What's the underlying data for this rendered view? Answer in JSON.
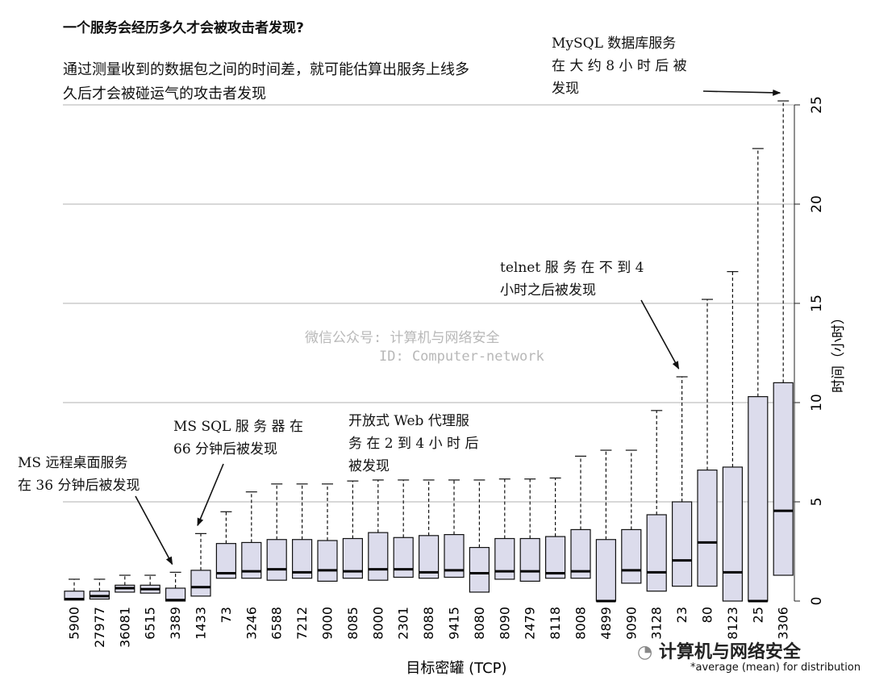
{
  "chart_data": {
    "type": "box",
    "title": "一个服务会经历多久才会被攻击者发现?",
    "subtitle": "通过测量收到的数据包之间的时间差，就可能估算出服务上线多久后才会被碰运气的攻击者发现",
    "xlabel": "目标密罐 (TCP)",
    "ylabel": "时间（小时）",
    "ylim": [
      0,
      25
    ],
    "yticks": [
      0,
      5,
      10,
      15,
      20,
      25
    ],
    "y_axis_side": "right",
    "grid": "horizontal",
    "box_fill": "#dcdcec",
    "categories": [
      "5900",
      "27977",
      "36081",
      "6515",
      "3389",
      "1433",
      "73",
      "3246",
      "6588",
      "7212",
      "9000",
      "8085",
      "8000",
      "2301",
      "8088",
      "9415",
      "8080",
      "8090",
      "2479",
      "8118",
      "8008",
      "4899",
      "9090",
      "3128",
      "23",
      "80",
      "8123",
      "25",
      "3306"
    ],
    "boxes": [
      {
        "q1": 0.05,
        "median": 0.1,
        "q3": 0.5,
        "whisker_high": 1.1
      },
      {
        "q1": 0.1,
        "median": 0.25,
        "q3": 0.5,
        "whisker_high": 1.1
      },
      {
        "q1": 0.45,
        "median": 0.65,
        "q3": 0.8,
        "whisker_high": 1.3
      },
      {
        "q1": 0.4,
        "median": 0.6,
        "q3": 0.8,
        "whisker_high": 1.3
      },
      {
        "q1": 0.0,
        "median": 0.05,
        "q3": 0.65,
        "whisker_high": 1.45
      },
      {
        "q1": 0.25,
        "median": 0.7,
        "q3": 1.55,
        "whisker_high": 3.4
      },
      {
        "q1": 1.15,
        "median": 1.4,
        "q3": 2.9,
        "whisker_high": 4.5
      },
      {
        "q1": 1.15,
        "median": 1.5,
        "q3": 2.95,
        "whisker_high": 5.5
      },
      {
        "q1": 1.05,
        "median": 1.6,
        "q3": 3.1,
        "whisker_high": 5.9
      },
      {
        "q1": 1.15,
        "median": 1.45,
        "q3": 3.1,
        "whisker_high": 5.9
      },
      {
        "q1": 1.0,
        "median": 1.55,
        "q3": 3.05,
        "whisker_high": 5.9
      },
      {
        "q1": 1.15,
        "median": 1.5,
        "q3": 3.15,
        "whisker_high": 6.05
      },
      {
        "q1": 1.05,
        "median": 1.6,
        "q3": 3.45,
        "whisker_high": 6.1
      },
      {
        "q1": 1.2,
        "median": 1.6,
        "q3": 3.2,
        "whisker_high": 6.1
      },
      {
        "q1": 1.15,
        "median": 1.45,
        "q3": 3.3,
        "whisker_high": 6.1
      },
      {
        "q1": 1.2,
        "median": 1.55,
        "q3": 3.35,
        "whisker_high": 6.1
      },
      {
        "q1": 0.45,
        "median": 1.4,
        "q3": 2.7,
        "whisker_high": 6.1
      },
      {
        "q1": 1.1,
        "median": 1.5,
        "q3": 3.15,
        "whisker_high": 6.15
      },
      {
        "q1": 1.0,
        "median": 1.5,
        "q3": 3.15,
        "whisker_high": 6.15
      },
      {
        "q1": 1.15,
        "median": 1.4,
        "q3": 3.25,
        "whisker_high": 6.2
      },
      {
        "q1": 1.15,
        "median": 1.5,
        "q3": 3.6,
        "whisker_high": 7.3
      },
      {
        "q1": 0.0,
        "median": 0.0,
        "q3": 3.1,
        "whisker_high": 7.6
      },
      {
        "q1": 0.9,
        "median": 1.55,
        "q3": 3.6,
        "whisker_high": 7.6
      },
      {
        "q1": 0.5,
        "median": 1.45,
        "q3": 4.35,
        "whisker_high": 9.6
      },
      {
        "q1": 0.75,
        "median": 2.05,
        "q3": 5.0,
        "whisker_high": 11.3
      },
      {
        "q1": 0.75,
        "median": 2.95,
        "q3": 6.6,
        "whisker_high": 15.2
      },
      {
        "q1": 0.0,
        "median": 1.45,
        "q3": 6.75,
        "whisker_high": 16.6
      },
      {
        "q1": 0.0,
        "median": 0.0,
        "q3": 10.3,
        "whisker_high": 22.8
      },
      {
        "q1": 1.3,
        "median": 4.55,
        "q3": 11.0,
        "whisker_high": 25.2
      }
    ],
    "annotations": [
      {
        "text_lines": [
          "MS 远程桌面服务",
          "在 36 分钟后被发现"
        ],
        "target_index": 4
      },
      {
        "text_lines": [
          "MS SQL 服 务 器 在",
          "66 分钟后被发现"
        ],
        "target_index": 5
      },
      {
        "text_lines": [
          "开放式 Web 代理服",
          "务 在 2 到 4 小 时 后",
          "被发现"
        ]
      },
      {
        "text_lines": [
          "telnet 服 务 在 不 到 4",
          "小时之后被发现"
        ],
        "target_index": 24
      },
      {
        "text_lines": [
          "MySQL 数据库服务",
          "在 大 约 8 小 时 后 被",
          "发现"
        ],
        "target_index": 28
      }
    ],
    "footnote": "*average (mean) for distribution",
    "watermark_lines": [
      "微信公众号: 计算机与网络安全",
      "ID: Computer-network"
    ],
    "brand": "计算机与网络安全"
  }
}
